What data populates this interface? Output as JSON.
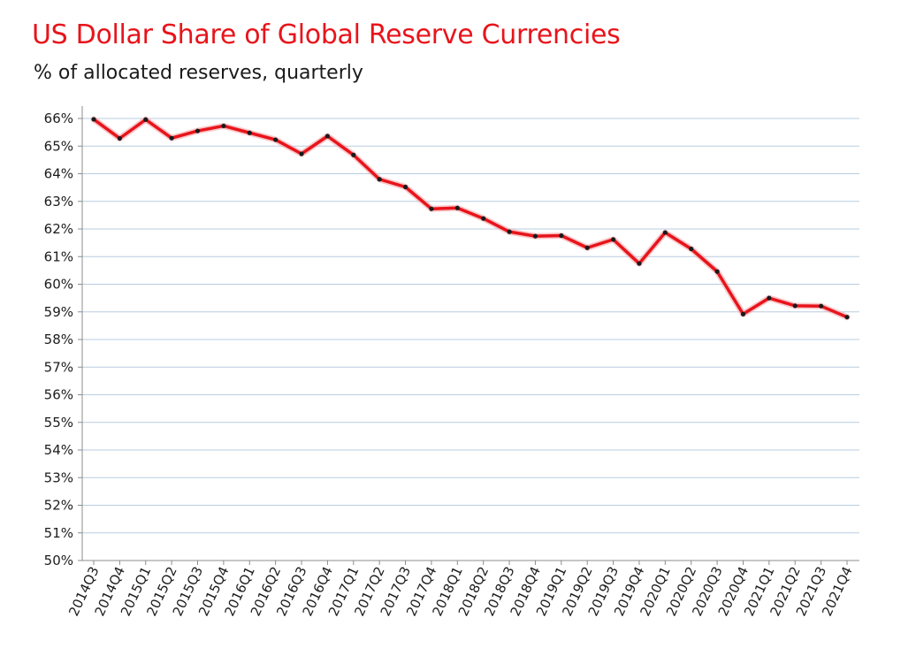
{
  "chart_data": {
    "type": "line",
    "title": "US Dollar Share of Global Reserve Currencies",
    "subtitle": "% of allocated reserves, quarterly",
    "xlabel": "",
    "ylabel": "",
    "ylim": [
      50,
      66
    ],
    "y_ticks": [
      50,
      51,
      52,
      53,
      54,
      55,
      56,
      57,
      58,
      59,
      60,
      61,
      62,
      63,
      64,
      65,
      66
    ],
    "y_tick_labels": [
      "50%",
      "51%",
      "52%",
      "53%",
      "54%",
      "55%",
      "56%",
      "57%",
      "58%",
      "59%",
      "60%",
      "61%",
      "62%",
      "63%",
      "64%",
      "65%",
      "66%"
    ],
    "grid": true,
    "legend": "none",
    "categories": [
      "2014Q3",
      "2014Q4",
      "2015Q1",
      "2015Q2",
      "2015Q3",
      "2015Q4",
      "2016Q1",
      "2016Q2",
      "2016Q3",
      "2016Q4",
      "2017Q1",
      "2017Q2",
      "2017Q3",
      "2017Q4",
      "2018Q1",
      "2018Q2",
      "2018Q3",
      "2018Q4",
      "2019Q1",
      "2019Q2",
      "2019Q3",
      "2019Q4",
      "2020Q1",
      "2020Q2",
      "2020Q3",
      "2020Q4",
      "2021Q1",
      "2021Q2",
      "2021Q3",
      "2021Q4"
    ],
    "series": [
      {
        "name": "US Dollar share",
        "color": "#e8141b",
        "marker_color": "#1a1a1a",
        "values": [
          65.97,
          65.28,
          65.96,
          65.29,
          65.55,
          65.73,
          65.48,
          65.23,
          64.72,
          65.36,
          64.68,
          63.8,
          63.52,
          62.73,
          62.76,
          62.38,
          61.9,
          61.74,
          61.76,
          61.32,
          61.62,
          60.75,
          61.87,
          61.28,
          60.46,
          58.92,
          59.5,
          59.22,
          59.21,
          58.81
        ]
      }
    ]
  },
  "colors": {
    "title": "#e8141b",
    "line": "#e8141b",
    "grid": "#b9cde0",
    "axis": "#8c8c8c"
  }
}
